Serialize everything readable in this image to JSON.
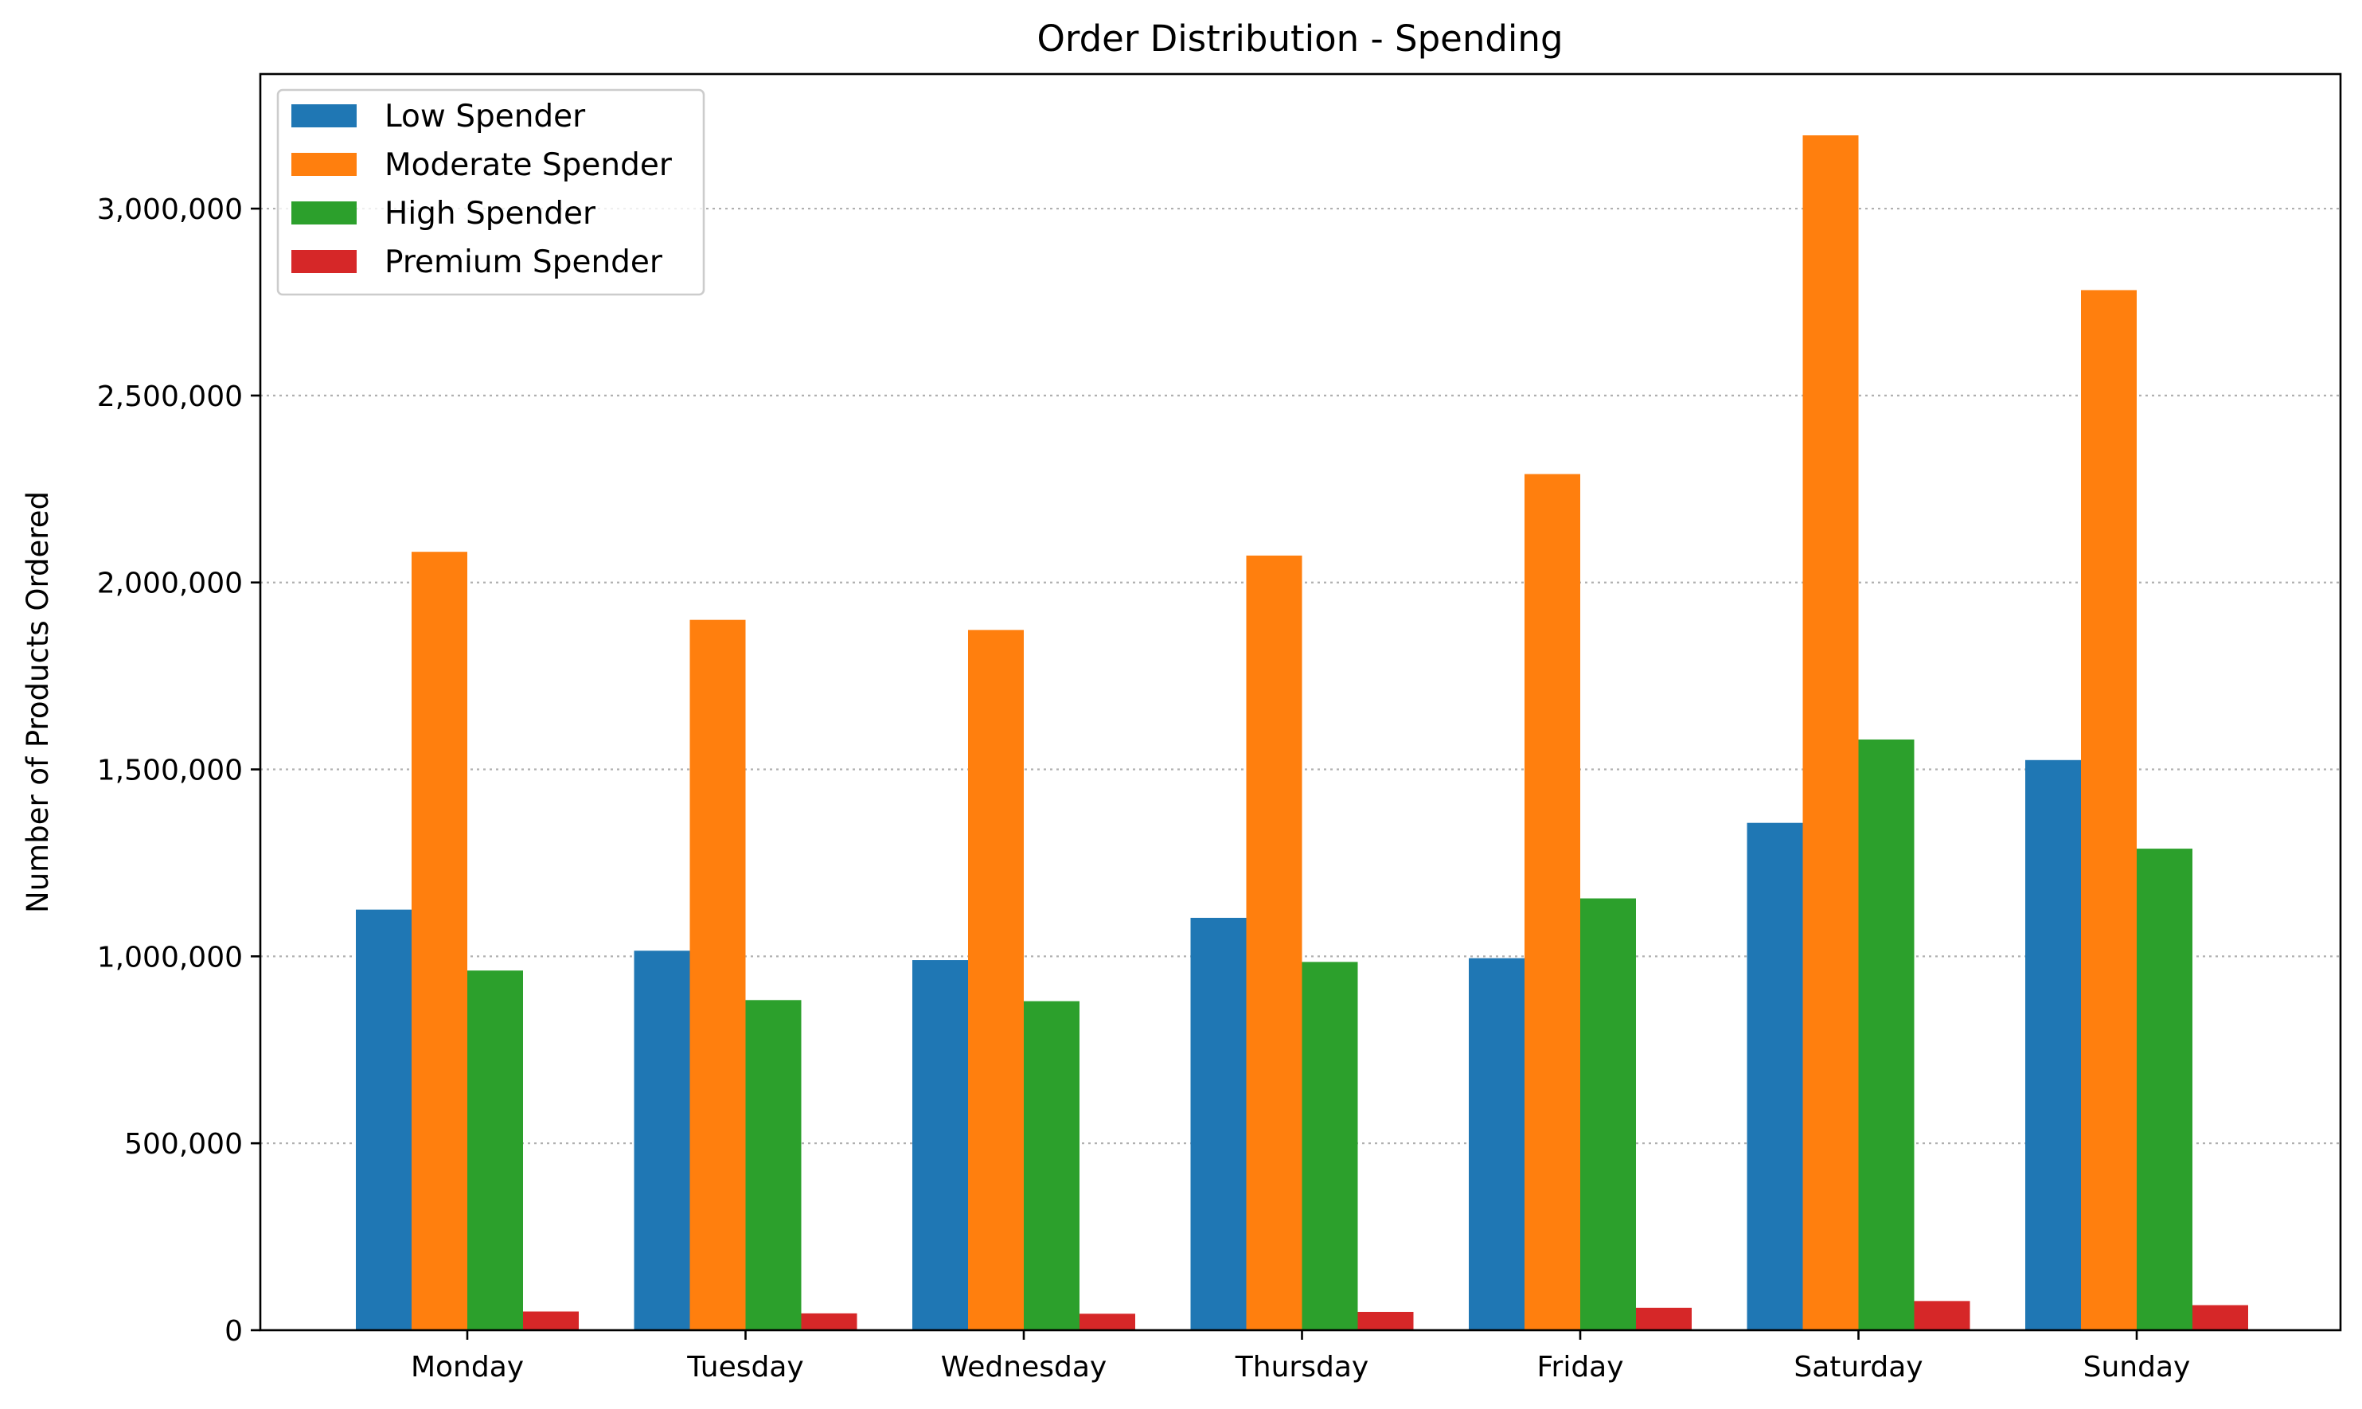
{
  "chart_data": {
    "type": "bar",
    "title": "Order Distribution - Spending",
    "xlabel": "",
    "ylabel": "Number of Products Ordered",
    "categories": [
      "Monday",
      "Tuesday",
      "Wednesday",
      "Thursday",
      "Friday",
      "Saturday",
      "Sunday"
    ],
    "series": [
      {
        "name": "Low Spender",
        "color": "#1f77b4",
        "values": [
          1125000,
          1015000,
          990000,
          1103000,
          995000,
          1357000,
          1525000
        ]
      },
      {
        "name": "Moderate Spender",
        "color": "#ff7f0e",
        "values": [
          2082000,
          1900000,
          1873000,
          2072000,
          2290000,
          3196000,
          2782000
        ]
      },
      {
        "name": "High Spender",
        "color": "#2ca02c",
        "values": [
          962000,
          883000,
          880000,
          985000,
          1155000,
          1580000,
          1288000
        ]
      },
      {
        "name": "Premium Spender",
        "color": "#d62728",
        "values": [
          50000,
          45000,
          44000,
          49000,
          60000,
          78000,
          67000
        ]
      }
    ],
    "ylim": [
      0,
      3360000
    ],
    "yticks": [
      0,
      500000,
      1000000,
      1500000,
      2000000,
      2500000,
      3000000
    ],
    "ytick_labels": [
      "0",
      "500,000",
      "1,000,000",
      "1,500,000",
      "2,000,000",
      "2,500,000",
      "3,000,000"
    ],
    "grid": "y-axis dotted",
    "legend_position": "upper-left"
  }
}
